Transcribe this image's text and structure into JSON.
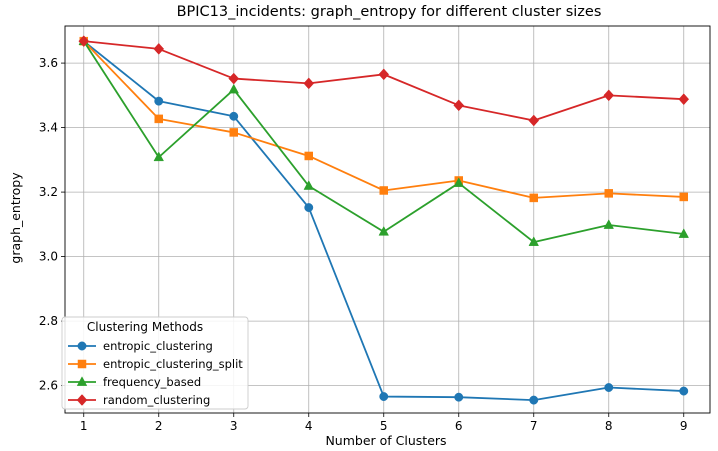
{
  "chart_data": {
    "type": "line",
    "title": "BPIC13_incidents: graph_entropy for different cluster sizes",
    "xlabel": "Number of Clusters",
    "ylabel": "graph_entropy",
    "x": [
      1,
      2,
      3,
      4,
      5,
      6,
      7,
      8,
      9
    ],
    "xticks": [
      "1",
      "2",
      "3",
      "4",
      "5",
      "6",
      "7",
      "8",
      "9"
    ],
    "yticks": [
      "2.6",
      "2.8",
      "3.0",
      "3.2",
      "3.4",
      "3.6"
    ],
    "xlim": [
      0.75,
      9.35
    ],
    "ylim": [
      2.515,
      3.715
    ],
    "grid": true,
    "legend": {
      "title": "Clustering Methods",
      "placement": "lower-left"
    },
    "series": [
      {
        "name": "entropic_clustering",
        "color": "#1f77b4",
        "marker": "circle",
        "values": [
          3.668,
          3.482,
          3.435,
          3.152,
          2.566,
          2.564,
          2.555,
          2.594,
          2.583
        ]
      },
      {
        "name": "entropic_clustering_split",
        "color": "#ff7f0e",
        "marker": "square",
        "values": [
          3.668,
          3.427,
          3.385,
          3.312,
          3.205,
          3.236,
          3.182,
          3.196,
          3.185
        ]
      },
      {
        "name": "frequency_based",
        "color": "#2ca02c",
        "marker": "triangle",
        "values": [
          3.668,
          3.308,
          3.518,
          3.219,
          3.077,
          3.228,
          3.045,
          3.098,
          3.07
        ]
      },
      {
        "name": "random_clustering",
        "color": "#d62728",
        "marker": "diamond",
        "values": [
          3.668,
          3.644,
          3.552,
          3.537,
          3.565,
          3.469,
          3.422,
          3.5,
          3.488
        ]
      }
    ]
  }
}
